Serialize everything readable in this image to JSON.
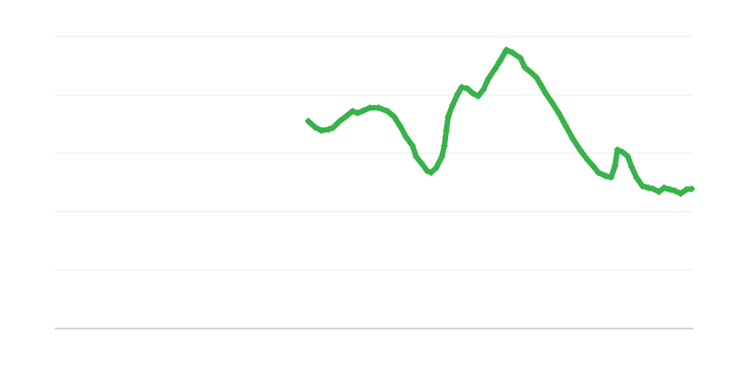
{
  "chart_data": {
    "type": "line",
    "title": "",
    "xlabel": "",
    "ylabel": "",
    "xlim": [
      0,
      100
    ],
    "ylim": [
      0,
      5
    ],
    "grid": true,
    "gridlines_y": [
      1,
      2,
      3,
      4,
      5
    ],
    "legend": "none",
    "series": [
      {
        "color": "#38b24a",
        "marker": "diamond",
        "x": [
          39.7,
          40.7,
          41.7,
          42.9,
          43.6,
          44.6,
          45.7,
          46.6,
          47.4,
          48.3,
          49.3,
          50.7,
          52.1,
          53.1,
          54.0,
          55.0,
          56.0,
          56.6,
          57.4,
          58.3,
          58.9,
          59.7,
          60.6,
          61.0,
          61.3,
          61.6,
          62.3,
          63.1,
          63.7,
          64.6,
          65.4,
          66.3,
          67.1,
          67.9,
          68.9,
          69.7,
          70.7,
          71.7,
          72.9,
          73.6,
          74.6,
          75.4,
          76.0,
          76.9,
          77.9,
          78.9,
          80.0,
          81.1,
          82.3,
          83.4,
          84.3,
          85.1,
          86.3,
          87.1,
          87.7,
          88.1,
          88.9,
          89.7,
          90.3,
          91.1,
          92.0,
          92.9,
          93.7,
          94.6,
          95.4,
          96.3,
          97.1,
          98.0,
          98.9,
          99.7
        ],
        "y": [
          3.55,
          3.45,
          3.39,
          3.41,
          3.44,
          3.55,
          3.64,
          3.72,
          3.69,
          3.73,
          3.78,
          3.78,
          3.72,
          3.63,
          3.48,
          3.28,
          3.13,
          2.94,
          2.83,
          2.7,
          2.67,
          2.75,
          2.94,
          3.13,
          3.39,
          3.63,
          3.83,
          4.02,
          4.13,
          4.11,
          4.03,
          3.98,
          4.09,
          4.28,
          4.44,
          4.58,
          4.77,
          4.72,
          4.63,
          4.47,
          4.38,
          4.3,
          4.19,
          4.02,
          3.86,
          3.69,
          3.47,
          3.25,
          3.05,
          2.89,
          2.78,
          2.67,
          2.61,
          2.59,
          2.78,
          3.06,
          3.02,
          2.95,
          2.77,
          2.58,
          2.44,
          2.41,
          2.39,
          2.34,
          2.41,
          2.38,
          2.36,
          2.31,
          2.38,
          2.39
        ]
      }
    ],
    "colors": {
      "gridline": "#ebebeb",
      "baseline": "#aaaaaa"
    }
  }
}
